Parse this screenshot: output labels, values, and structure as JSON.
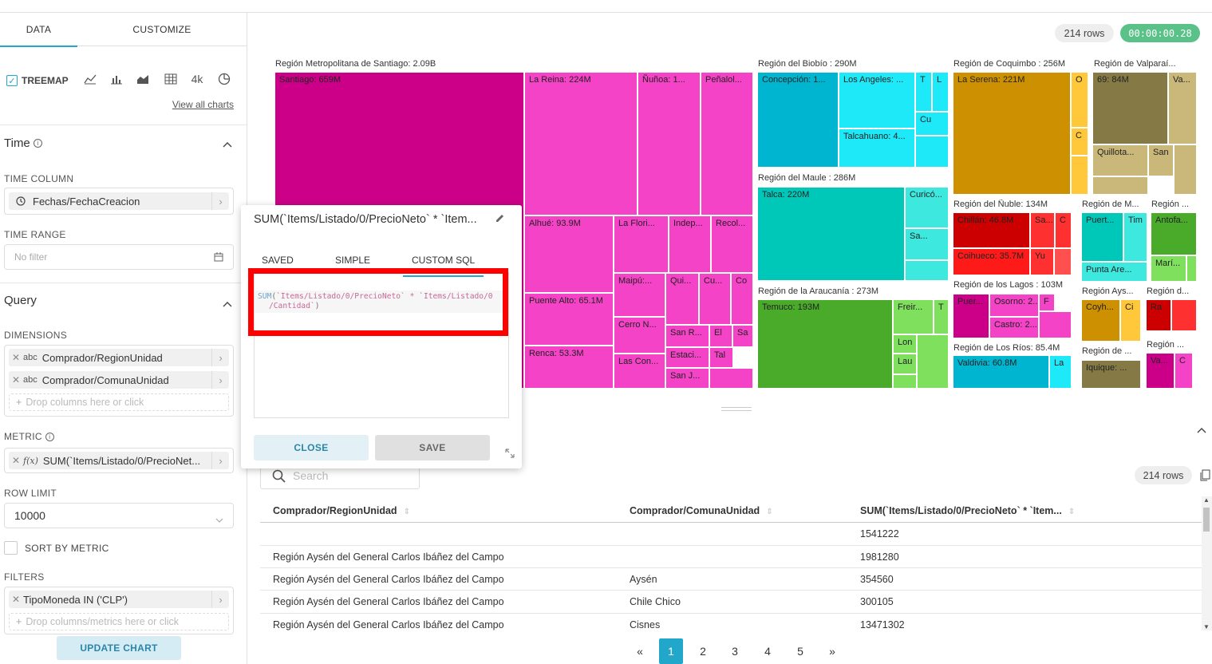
{
  "tabs": {
    "data": "DATA",
    "customize": "CUSTOMIZE"
  },
  "chart_picker": {
    "selected": "TREEMAP",
    "number_icon": "4k",
    "view_all": "View all charts"
  },
  "time": {
    "section": "Time",
    "column_label": "TIME COLUMN",
    "column_value": "Fechas/FechaCreacion",
    "range_label": "TIME RANGE",
    "range_value": "No filter"
  },
  "query": {
    "section": "Query",
    "dimensions_label": "DIMENSIONS",
    "dimensions": [
      {
        "type": "abc",
        "name": "Comprador/RegionUnidad"
      },
      {
        "type": "abc",
        "name": "Comprador/ComunaUnidad"
      }
    ],
    "dimensions_drop": "Drop columns here or click",
    "metric_label": "METRIC",
    "metric_type": "f(x)",
    "metric_value": "SUM(`Items/Listado/0/PrecioNet...",
    "row_limit_label": "ROW LIMIT",
    "row_limit_value": "10000",
    "sort_by_metric": "SORT BY METRIC",
    "filters_label": "FILTERS",
    "filter_value": "TipoMoneda IN ('CLP')",
    "filters_drop": "Drop columns/metrics here or click",
    "update_button": "UPDATE CHART"
  },
  "status": {
    "rows": "214 rows",
    "timer": "00:00:00.28"
  },
  "popover": {
    "title": "SUM(`Items/Listado/0/PrecioNeto` * `Item...",
    "tabs": [
      "SAVED",
      "SIMPLE",
      "CUSTOM SQL"
    ],
    "active_tab": "CUSTOM SQL",
    "sql_line1_fn": "SUM",
    "sql_line1_rest": "`Items/Listado/0/PrecioNeto` * `Items/Listado/0",
    "sql_line2": "/Cantidad`",
    "close": "CLOSE",
    "save": "SAVE"
  },
  "treemap": {
    "regions": [
      {
        "label": "Región Metropolitana de Santiago: 2.09B"
      },
      {
        "label": "Región del Biobío : 290M"
      },
      {
        "label": "Región de Coquimbo : 256M"
      },
      {
        "label": "Región de Valparaí..."
      },
      {
        "label": "Región del Maule : 286M"
      },
      {
        "label": "Región del Ñuble: 134M"
      },
      {
        "label": "Región de M..."
      },
      {
        "label": "Región ..."
      },
      {
        "label": "Región de la Araucanía : 273M"
      },
      {
        "label": "Región de los Lagos : 103M"
      },
      {
        "label": "Región Ays..."
      },
      {
        "label": "Región d..."
      },
      {
        "label": "Región de Los Ríos: 85.4M"
      },
      {
        "label": "Región de ..."
      },
      {
        "label": "Región ..."
      }
    ],
    "tiles": [
      "Santiago: 659M",
      "La Reina: 224M",
      "Ñuñoa: 1...",
      "Peñalol...",
      "Alhué: 93.9M",
      "La Flori...",
      "Indep...",
      "Recol...",
      "Maipú:...",
      "Qui...",
      "Cu...",
      "Co",
      "Puente Alto: 65.1M",
      "Cerro N...",
      "San R...",
      "El",
      "Sa",
      "Renca: 53.3M",
      "Estaci...",
      "Tal",
      "Las Con...",
      "San J...",
      "Concepción: 1...",
      "Los Angeles: ...",
      "T",
      "L",
      "Cu",
      "Talcahuano: 4...",
      "La Serena: 221M",
      "O",
      "C",
      "69: 84M",
      "Va...",
      "Quillota...",
      "San",
      "Talca: 220M",
      "Curicó...",
      "Sa...",
      "Chillán: 46.8M",
      "Sa...",
      "C",
      "Coihueco: 35.7M",
      "Yu",
      "Puert...",
      "Tim",
      "Antofa...",
      "Punta Are...",
      "Marí...",
      "Temuco: 193M",
      "Freir...",
      "T",
      "Lon",
      "Lau",
      "Puer...",
      "Osorno: 2...",
      "F",
      "Castro: 2...",
      "Coyh...",
      "Ci",
      "Ra",
      "Valdivia: 60.8M",
      "La",
      "Iquique: ...",
      "Va...",
      "C"
    ]
  },
  "table": {
    "search_placeholder": "Search",
    "rows_badge": "214 rows",
    "headers": [
      "Comprador/RegionUnidad",
      "Comprador/ComunaUnidad",
      "SUM(`Items/Listado/0/PrecioNeto` * `Item..."
    ],
    "rows": [
      [
        "",
        "",
        "1541222"
      ],
      [
        "Región Aysén del General Carlos Ibáñez del Campo",
        "",
        "1981280"
      ],
      [
        "Región Aysén del General Carlos Ibáñez del Campo",
        "Aysén",
        "354560"
      ],
      [
        "Región Aysén del General Carlos Ibáñez del Campo",
        "Chile Chico",
        "300105"
      ],
      [
        "Región Aysén del General Carlos Ibáñez del Campo",
        "Cisnes",
        "13471302"
      ]
    ]
  },
  "pagination": {
    "prev": "«",
    "pages": [
      "1",
      "2",
      "3",
      "4",
      "5"
    ],
    "active": "1",
    "next": "»"
  },
  "colors": {
    "accent": "#20a7c9",
    "timer_green": "#5ac189",
    "highlight_red": "#ff0000",
    "metropolitana": "#cc0088",
    "metropolitana_light": "#f543c7",
    "biobio": "#00b5d0",
    "biobio_light": "#1de9f9",
    "coquimbo": "#cc9000",
    "valparaiso": "#857a46",
    "maule": "#00c8b8",
    "nuble": "#cc0000",
    "araucania": "#4aab2a"
  }
}
